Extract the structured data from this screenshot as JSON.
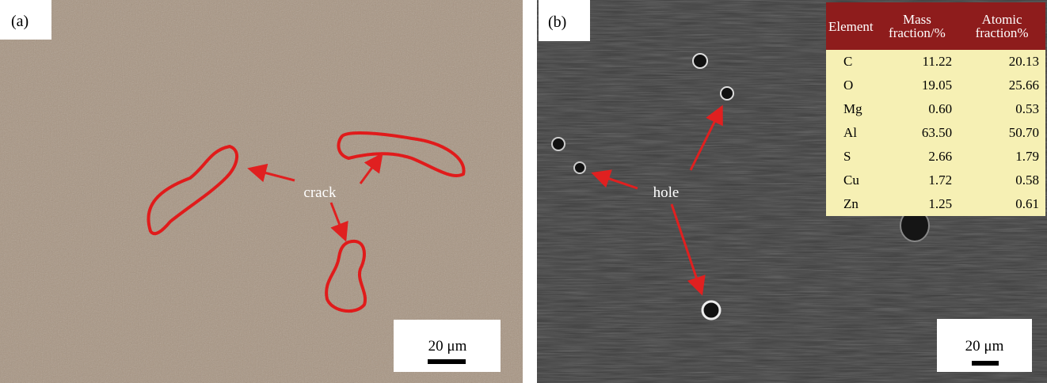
{
  "panels": [
    {
      "label": "(a)",
      "annotation": "crack",
      "scale_bar": "20 μm"
    },
    {
      "label": "(b)",
      "annotation": "hole",
      "scale_bar": "20 μm",
      "table": {
        "header": [
          "Element",
          "Mass fraction/%",
          "Atomic fraction%"
        ],
        "rows": [
          [
            "C",
            "11.22",
            "20.13"
          ],
          [
            "O",
            "19.05",
            "25.66"
          ],
          [
            "Mg",
            "0.60",
            "0.53"
          ],
          [
            "Al",
            "63.50",
            "50.70"
          ],
          [
            "S",
            "2.66",
            "1.79"
          ],
          [
            "Cu",
            "1.72",
            "0.58"
          ],
          [
            "Zn",
            "1.25",
            "0.61"
          ]
        ]
      }
    }
  ]
}
